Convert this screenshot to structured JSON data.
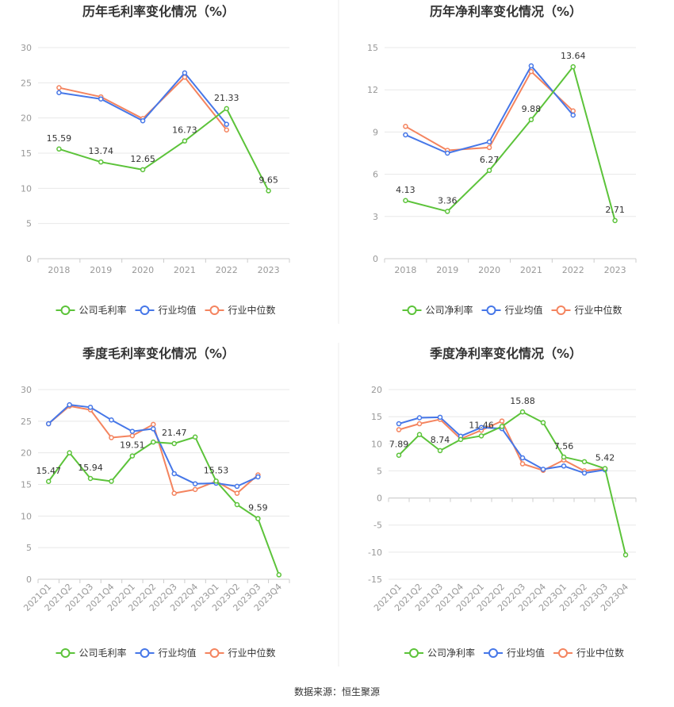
{
  "colors": {
    "company": "#5cc33a",
    "average": "#4677e8",
    "median": "#f4845f",
    "grid": "#e8e8e8",
    "axis": "#cccccc"
  },
  "legend": {
    "company_gross": "公司毛利率",
    "company_net": "公司净利率",
    "average": "行业均值",
    "median": "行业中位数"
  },
  "source": "数据来源：恒生聚源",
  "chart_data": [
    {
      "type": "line",
      "title": "历年毛利率变化情况（%）",
      "categories": [
        "2018",
        "2019",
        "2020",
        "2021",
        "2022",
        "2023"
      ],
      "ylim": [
        0,
        30
      ],
      "yticks": [
        0,
        5,
        10,
        15,
        20,
        25,
        30
      ],
      "legend_position": "bottom",
      "grid": true,
      "series": [
        {
          "name": "公司毛利率",
          "key": "company",
          "values": [
            15.59,
            13.74,
            12.65,
            16.73,
            21.33,
            9.65
          ],
          "labels": [
            "15.59",
            "13.74",
            "12.65",
            "16.73",
            "21.33",
            "9.65"
          ]
        },
        {
          "name": "行业均值",
          "key": "average",
          "values": [
            23.6,
            22.7,
            19.6,
            26.4,
            19.1,
            null
          ]
        },
        {
          "name": "行业中位数",
          "key": "median",
          "values": [
            24.3,
            23.0,
            19.9,
            25.8,
            18.3,
            null
          ]
        }
      ]
    },
    {
      "type": "line",
      "title": "历年净利率变化情况（%）",
      "categories": [
        "2018",
        "2019",
        "2020",
        "2021",
        "2022",
        "2023"
      ],
      "ylim": [
        0,
        15
      ],
      "yticks": [
        0,
        3,
        6,
        9,
        12,
        15
      ],
      "legend_position": "bottom",
      "grid": true,
      "series": [
        {
          "name": "公司净利率",
          "key": "company",
          "values": [
            4.13,
            3.36,
            6.27,
            9.88,
            13.64,
            2.71
          ],
          "labels": [
            "4.13",
            "3.36",
            "6.27",
            "9.88",
            "13.64",
            "2.71"
          ]
        },
        {
          "name": "行业均值",
          "key": "average",
          "values": [
            8.8,
            7.5,
            8.3,
            13.7,
            10.2,
            null
          ]
        },
        {
          "name": "行业中位数",
          "key": "median",
          "values": [
            9.4,
            7.7,
            7.9,
            13.3,
            10.5,
            null
          ]
        }
      ]
    },
    {
      "type": "line",
      "title": "季度毛利率变化情况（%）",
      "categories": [
        "2021Q1",
        "2021Q2",
        "2021Q3",
        "2021Q4",
        "2022Q1",
        "2022Q2",
        "2022Q3",
        "2022Q4",
        "2023Q1",
        "2023Q2",
        "2023Q3",
        "2023Q4"
      ],
      "ylim": [
        0,
        30
      ],
      "yticks": [
        0,
        5,
        10,
        15,
        20,
        25,
        30
      ],
      "legend_position": "bottom",
      "grid": true,
      "series": [
        {
          "name": "公司毛利率",
          "key": "company",
          "values": [
            15.47,
            20.0,
            15.94,
            15.5,
            19.51,
            21.7,
            21.47,
            22.5,
            15.53,
            11.8,
            9.59,
            0.7
          ],
          "labels": [
            "15.47",
            "",
            "15.94",
            "",
            "19.51",
            "",
            "21.47",
            "",
            "15.53",
            "",
            "9.59",
            ""
          ]
        },
        {
          "name": "行业均值",
          "key": "average",
          "values": [
            24.6,
            27.6,
            27.2,
            25.2,
            23.4,
            23.8,
            16.7,
            15.1,
            15.2,
            14.7,
            16.2,
            null
          ]
        },
        {
          "name": "行业中位数",
          "key": "median",
          "values": [
            24.6,
            27.4,
            26.8,
            22.4,
            22.7,
            24.5,
            13.6,
            14.2,
            15.5,
            13.6,
            16.5,
            null
          ]
        }
      ]
    },
    {
      "type": "line",
      "title": "季度净利率变化情况（%）",
      "categories": [
        "2021Q1",
        "2021Q2",
        "2021Q3",
        "2021Q4",
        "2022Q1",
        "2022Q2",
        "2022Q3",
        "2022Q4",
        "2023Q1",
        "2023Q2",
        "2023Q3",
        "2023Q4"
      ],
      "ylim": [
        -15,
        20
      ],
      "yticks": [
        -15,
        -10,
        -5,
        0,
        5,
        10,
        15,
        20
      ],
      "legend_position": "bottom",
      "grid": true,
      "series": [
        {
          "name": "公司净利率",
          "key": "company",
          "values": [
            7.89,
            11.7,
            8.74,
            10.8,
            11.46,
            13.2,
            15.88,
            13.9,
            7.56,
            6.7,
            5.42,
            -10.5
          ],
          "labels": [
            "7.89",
            "",
            "8.74",
            "",
            "11.46",
            "",
            "15.88",
            "",
            "7.56",
            "",
            "5.42",
            ""
          ]
        },
        {
          "name": "行业均值",
          "key": "average",
          "values": [
            13.7,
            14.8,
            14.9,
            11.4,
            13.0,
            12.8,
            7.4,
            5.3,
            5.9,
            4.6,
            5.2,
            null
          ]
        },
        {
          "name": "行业中位数",
          "key": "median",
          "values": [
            12.6,
            13.7,
            14.5,
            10.9,
            12.5,
            14.2,
            6.3,
            5.1,
            7.0,
            5.0,
            5.4,
            null
          ]
        }
      ]
    }
  ]
}
